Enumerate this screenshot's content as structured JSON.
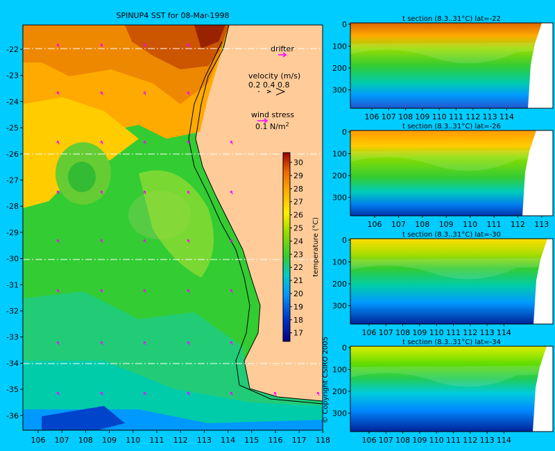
{
  "map": {
    "title": "SPINUP4 SST for 08-Mar-1998",
    "x_ticks": [
      "106",
      "107",
      "108",
      "109",
      "110",
      "111",
      "112",
      "113",
      "114",
      "115",
      "116",
      "117",
      "118"
    ],
    "y_ticks": [
      "-22",
      "-23",
      "-24",
      "-25",
      "-26",
      "-27",
      "-28",
      "-29",
      "-30",
      "-31",
      "-32",
      "-33",
      "-34",
      "-35",
      "-36"
    ],
    "copyright": "© Copyright CSIRO 2005"
  },
  "legend": {
    "drifter": "drifter",
    "velocity_title": "velocity (m/s)",
    "velocity_values": "0.2 0.4 0.8",
    "wind_title": "wind stress",
    "wind_value": "0.1 N/m",
    "wind_exp": "2"
  },
  "colorbar": {
    "label": "temperature (°C)",
    "ticks": [
      "30",
      "29",
      "28",
      "27",
      "26",
      "25",
      "24",
      "23",
      "22",
      "21",
      "20",
      "19",
      "18",
      "17"
    ]
  },
  "sections": [
    {
      "title": "t section (8.3..31°C) lat=-22",
      "x_ticks": [
        "106",
        "107",
        "108",
        "109",
        "110",
        "111",
        "112",
        "113",
        "114"
      ],
      "y_ticks": [
        "0",
        "100",
        "200",
        "300"
      ]
    },
    {
      "title": "t section (8.3..31°C) lat=-26",
      "x_ticks": [
        "106",
        "107",
        "108",
        "109",
        "110",
        "111",
        "112",
        "113"
      ],
      "y_ticks": [
        "0",
        "100",
        "200",
        "300"
      ]
    },
    {
      "title": "t section (8.3..31°C) lat=-30",
      "x_ticks": [
        "106",
        "107",
        "108",
        "109",
        "110",
        "111",
        "112",
        "113",
        "114"
      ],
      "y_ticks": [
        "0",
        "100",
        "200",
        "300"
      ]
    },
    {
      "title": "t section (8.3..31°C) lat=-34",
      "x_ticks": [
        "106",
        "107",
        "108",
        "109",
        "110",
        "111",
        "112",
        "113",
        "114"
      ],
      "y_ticks": [
        "0",
        "100",
        "200",
        "300"
      ]
    }
  ],
  "colors": {
    "background": "#00ccff",
    "land": "#ffcc99",
    "vector": "#ff00ff",
    "warm": "#cc6600",
    "mid": "#33cc33",
    "cool": "#3399ff",
    "cold": "#0033aa"
  }
}
